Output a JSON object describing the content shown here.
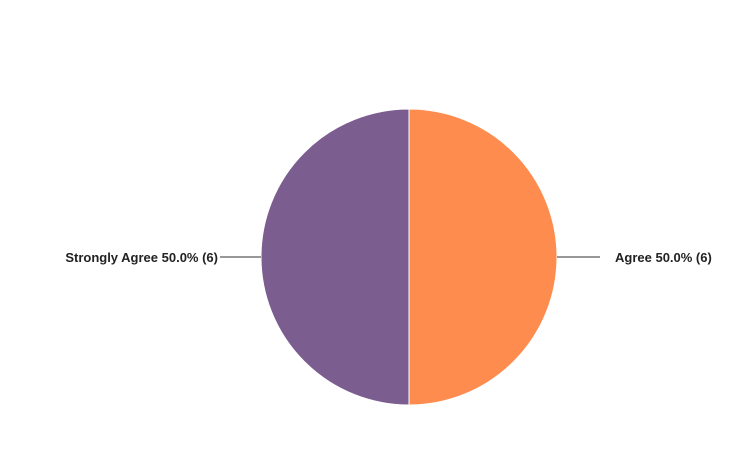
{
  "chart_data": {
    "type": "pie",
    "title": "",
    "slices": [
      {
        "label": "Agree",
        "percent": "50.0%",
        "count": 6,
        "value": 6,
        "color": "#FF8C4F",
        "display": "Agree 50.0% (6)"
      },
      {
        "label": "Strongly Agree",
        "percent": "50.0%",
        "count": 6,
        "value": 6,
        "color": "#7B5D8F",
        "display": "Strongly Agree 50.0% (6)"
      }
    ],
    "start_angle": "12 o'clock",
    "direction": "clockwise",
    "legend": "none (outside leader-line labels)"
  }
}
